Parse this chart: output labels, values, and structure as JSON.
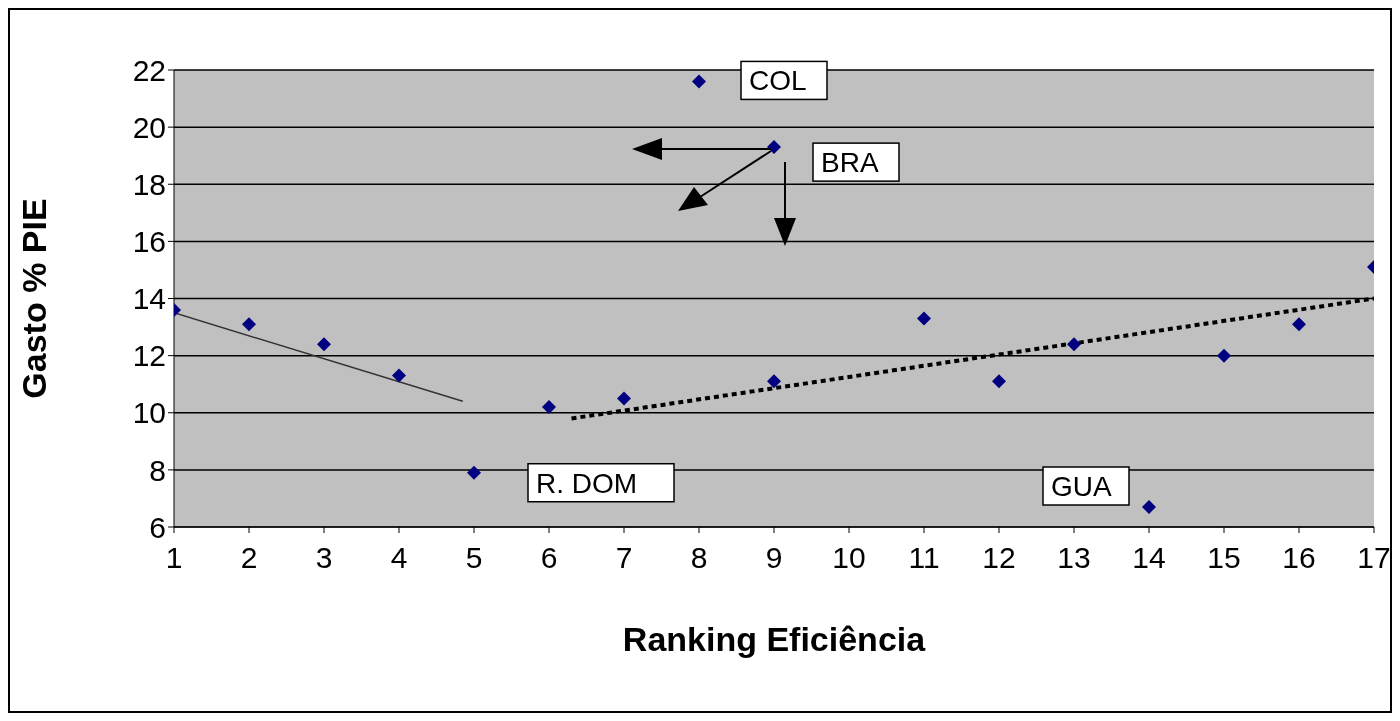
{
  "chart_data": {
    "type": "scatter",
    "xlabel": "Ranking Eficiência",
    "ylabel": "Gasto % PIE",
    "xlim": [
      1,
      17
    ],
    "xticks": [
      1,
      2,
      3,
      4,
      5,
      6,
      7,
      8,
      9,
      10,
      11,
      12,
      13,
      14,
      15,
      16,
      17
    ],
    "ylim": [
      6,
      22
    ],
    "yticks": [
      6,
      8,
      10,
      12,
      14,
      16,
      18,
      20,
      22
    ],
    "grid": "y",
    "series": [
      {
        "marker": "diamond",
        "color": "#000080",
        "x": [
          1,
          2,
          3,
          4,
          5,
          6,
          7,
          8,
          9,
          9,
          11,
          12,
          13,
          14,
          15,
          16,
          17
        ],
        "values": [
          13.6,
          13.1,
          12.4,
          11.3,
          7.9,
          10.2,
          10.5,
          21.6,
          19.3,
          11.1,
          13.3,
          11.1,
          12.4,
          6.7,
          12.0,
          13.1,
          15.1
        ]
      },
      {
        "type": "line",
        "marker": "none",
        "color": "#333333",
        "line_style": "solid",
        "x": [
          1,
          4.85
        ],
        "values": [
          13.5,
          10.4
        ]
      },
      {
        "type": "line",
        "marker": "none",
        "color": "#000000",
        "line_style": "dotted",
        "x": [
          6.3,
          17
        ],
        "values": [
          9.8,
          14.0
        ]
      }
    ],
    "annotations": [
      {
        "text": "COL",
        "x": 8,
        "y": 21.6
      },
      {
        "text": "BRA",
        "x": 9,
        "y": 19.3
      },
      {
        "text": "R. DOM",
        "x": 5,
        "y": 7.9
      },
      {
        "text": "GUA",
        "x": 14,
        "y": 6.7
      }
    ]
  }
}
